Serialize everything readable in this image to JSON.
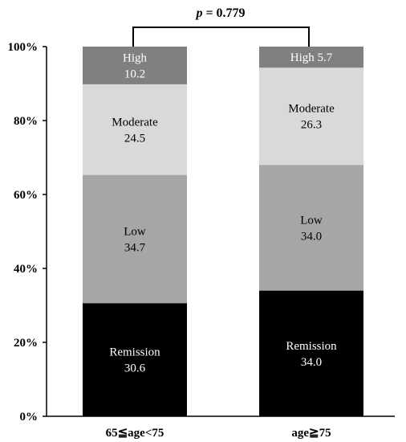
{
  "chart_data": {
    "type": "bar",
    "stacked": true,
    "percent_scale": true,
    "categories": [
      "65≦age<75",
      "age≧75"
    ],
    "series": [
      {
        "name": "Remission",
        "values": [
          30.6,
          34.0
        ],
        "color": "#000000",
        "label_color": "#ffffff"
      },
      {
        "name": "Low",
        "values": [
          34.7,
          34.0
        ],
        "color": "#a6a6a6",
        "label_color": "#000000"
      },
      {
        "name": "Moderate",
        "values": [
          24.5,
          26.3
        ],
        "color": "#d9d9d9",
        "label_color": "#000000"
      },
      {
        "name": "High",
        "values": [
          10.2,
          5.7
        ],
        "color": "#808080",
        "label_color": "#ffffff"
      }
    ],
    "segment_labels": [
      [
        "Remission",
        "30.6"
      ],
      [
        "Low",
        "34.7"
      ],
      [
        "Moderate",
        "24.5"
      ],
      [
        "High",
        "10.2"
      ],
      [
        "Remission",
        "34.0"
      ],
      [
        "Low",
        "34.0"
      ],
      [
        "Moderate",
        "26.3"
      ],
      [
        "High 5.7"
      ]
    ],
    "yticks": [
      "0%",
      "20%",
      "40%",
      "60%",
      "80%",
      "100%"
    ],
    "ylim": [
      0,
      100
    ],
    "grid": false,
    "legend": "none",
    "annotation": {
      "p_symbol": "p",
      "p_value": "= 0.779"
    }
  }
}
